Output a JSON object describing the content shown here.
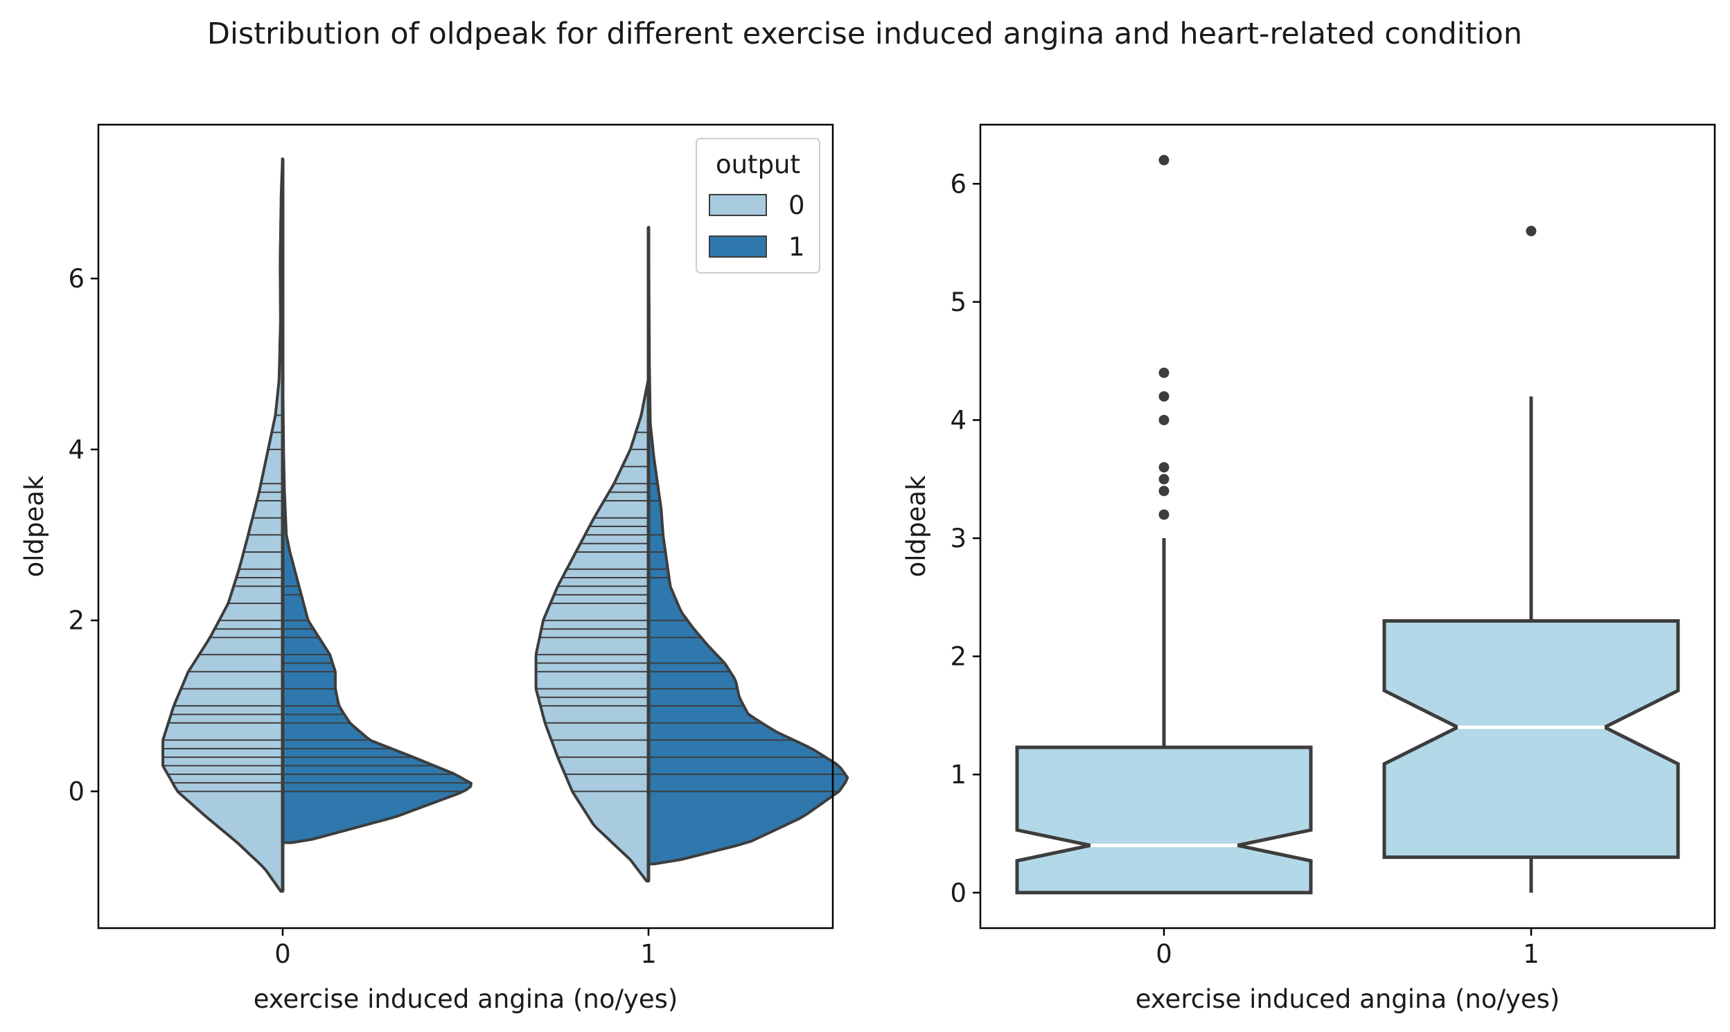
{
  "title": "Distribution of oldpeak for different exercise induced angina and heart-related condition",
  "colors": {
    "output_0": "#a9cbe0",
    "output_1": "#2e78ae",
    "box_fill": "#b3d8e7",
    "edge": "#3d3d3d",
    "median": "#ffffff"
  },
  "chart_data": [
    {
      "type": "violin",
      "split": true,
      "inner": "stick",
      "xlabel": "exercise induced angina (no/yes)",
      "ylabel": "oldpeak",
      "categories": [
        "0",
        "1"
      ],
      "ylim": [
        -1.6,
        7.8
      ],
      "yticks": [
        0,
        2,
        4,
        6
      ],
      "legend": {
        "title": "output",
        "entries": [
          "0",
          "1"
        ],
        "position": "top-right"
      },
      "series": [
        {
          "name": "0",
          "violins": [
            {
              "category": "0",
              "range": [
                -1.17,
                7.4
              ],
              "profile": [
                [
                  -1.17,
                  0.01
                ],
                [
                  -0.9,
                  0.1
                ],
                [
                  -0.6,
                  0.25
                ],
                [
                  -0.3,
                  0.42
                ],
                [
                  0,
                  0.58
                ],
                [
                  0.3,
                  0.66
                ],
                [
                  0.6,
                  0.66
                ],
                [
                  1.0,
                  0.6
                ],
                [
                  1.4,
                  0.52
                ],
                [
                  1.8,
                  0.4
                ],
                [
                  2.2,
                  0.3
                ],
                [
                  2.6,
                  0.24
                ],
                [
                  3.0,
                  0.19
                ],
                [
                  3.5,
                  0.13
                ],
                [
                  4.0,
                  0.08
                ],
                [
                  4.4,
                  0.04
                ],
                [
                  4.8,
                  0.02
                ],
                [
                  5.5,
                  0.012
                ],
                [
                  6.2,
                  0.014
                ],
                [
                  7.0,
                  0.008
                ],
                [
                  7.4,
                  0.001
                ]
              ],
              "sticks": [
                0,
                0.1,
                0.2,
                0.3,
                0.4,
                0.5,
                0.6,
                0.8,
                0.9,
                1.0,
                1.2,
                1.4,
                1.6,
                1.8,
                1.9,
                2.0,
                2.2,
                2.4,
                2.5,
                2.6,
                2.8,
                3.0,
                3.2,
                3.4,
                3.5,
                3.6,
                4.0,
                4.2,
                4.4
              ]
            },
            {
              "category": "1",
              "range": [
                -1.05,
                4.8
              ],
              "profile": [
                [
                  -1.05,
                  0.01
                ],
                [
                  -0.8,
                  0.1
                ],
                [
                  -0.4,
                  0.3
                ],
                [
                  0,
                  0.42
                ],
                [
                  0.4,
                  0.5
                ],
                [
                  0.8,
                  0.57
                ],
                [
                  1.2,
                  0.62
                ],
                [
                  1.6,
                  0.62
                ],
                [
                  2.0,
                  0.58
                ],
                [
                  2.4,
                  0.5
                ],
                [
                  2.8,
                  0.4
                ],
                [
                  3.2,
                  0.3
                ],
                [
                  3.6,
                  0.19
                ],
                [
                  4.0,
                  0.1
                ],
                [
                  4.4,
                  0.04
                ],
                [
                  4.8,
                  0.003
                ]
              ],
              "sticks": [
                0,
                0.2,
                0.4,
                0.6,
                0.8,
                1.0,
                1.1,
                1.2,
                1.4,
                1.5,
                1.6,
                1.8,
                1.9,
                2.0,
                2.2,
                2.3,
                2.4,
                2.5,
                2.6,
                2.8,
                2.9,
                3.0,
                3.1,
                3.2,
                3.4,
                3.5,
                3.6,
                3.8,
                4.0,
                4.2
              ]
            }
          ]
        },
        {
          "name": "1",
          "violins": [
            {
              "category": "0",
              "range": [
                -0.6,
                4.8
              ],
              "profile": [
                [
                  -0.6,
                  0.05
                ],
                [
                  -0.58,
                  0.13
                ],
                [
                  -0.3,
                  0.62
                ],
                [
                  0,
                  1.0
                ],
                [
                  0.08,
                  1.05
                ],
                [
                  0.2,
                  0.95
                ],
                [
                  0.4,
                  0.72
                ],
                [
                  0.6,
                  0.48
                ],
                [
                  0.8,
                  0.37
                ],
                [
                  1.0,
                  0.31
                ],
                [
                  1.2,
                  0.29
                ],
                [
                  1.4,
                  0.29
                ],
                [
                  1.6,
                  0.26
                ],
                [
                  1.8,
                  0.2
                ],
                [
                  2.0,
                  0.14
                ],
                [
                  2.4,
                  0.09
                ],
                [
                  2.8,
                  0.04
                ],
                [
                  3.0,
                  0.02
                ],
                [
                  3.5,
                  0.01
                ],
                [
                  4.0,
                  0.005
                ],
                [
                  4.8,
                  0.001
                ]
              ],
              "sticks": [
                0,
                0.1,
                0.2,
                0.3,
                0.4,
                0.5,
                0.6,
                0.8,
                0.9,
                1.0,
                1.2,
                1.4,
                1.5,
                1.6,
                1.8,
                1.9,
                2.0,
                2.3,
                2.4
              ]
            },
            {
              "category": "1",
              "range": [
                -0.85,
                6.6
              ],
              "profile": [
                [
                  -0.85,
                  0.03
                ],
                [
                  -0.83,
                  0.12
                ],
                [
                  -0.6,
                  0.55
                ],
                [
                  -0.3,
                  0.85
                ],
                [
                  0,
                  1.05
                ],
                [
                  0.15,
                  1.1
                ],
                [
                  0.3,
                  1.05
                ],
                [
                  0.5,
                  0.9
                ],
                [
                  0.7,
                  0.7
                ],
                [
                  0.9,
                  0.55
                ],
                [
                  1.1,
                  0.5
                ],
                [
                  1.3,
                  0.48
                ],
                [
                  1.5,
                  0.42
                ],
                [
                  1.7,
                  0.33
                ],
                [
                  1.9,
                  0.25
                ],
                [
                  2.1,
                  0.18
                ],
                [
                  2.4,
                  0.12
                ],
                [
                  2.7,
                  0.1
                ],
                [
                  3.0,
                  0.08
                ],
                [
                  3.3,
                  0.07
                ],
                [
                  3.6,
                  0.05
                ],
                [
                  3.9,
                  0.03
                ],
                [
                  4.3,
                  0.01
                ],
                [
                  5.0,
                  0.005
                ],
                [
                  6.6,
                  0.001
                ]
              ],
              "sticks": [
                0,
                0.2,
                0.4,
                0.6,
                0.8,
                1.0,
                1.2,
                1.4,
                1.5,
                1.8,
                2.0,
                2.5,
                2.6,
                2.8,
                3.0,
                3.4,
                3.6
              ]
            }
          ]
        }
      ]
    },
    {
      "type": "box",
      "notch": true,
      "xlabel": "exercise induced angina (no/yes)",
      "ylabel": "oldpeak",
      "categories": [
        "0",
        "1"
      ],
      "ylim": [
        -0.3,
        6.5
      ],
      "yticks": [
        0,
        1,
        2,
        3,
        4,
        5,
        6
      ],
      "boxes": [
        {
          "category": "0",
          "q1": 0.0,
          "median": 0.4,
          "q3": 1.23,
          "notch_low": 0.27,
          "notch_high": 0.53,
          "whisker_low": 0.0,
          "whisker_high": 3.0,
          "outliers": [
            3.2,
            3.4,
            3.5,
            3.6,
            4.0,
            4.2,
            4.4,
            6.2
          ]
        },
        {
          "category": "1",
          "q1": 0.3,
          "median": 1.4,
          "q3": 2.3,
          "notch_low": 1.09,
          "notch_high": 1.71,
          "whisker_low": 0.0,
          "whisker_high": 4.2,
          "outliers": [
            5.6
          ]
        }
      ]
    }
  ]
}
